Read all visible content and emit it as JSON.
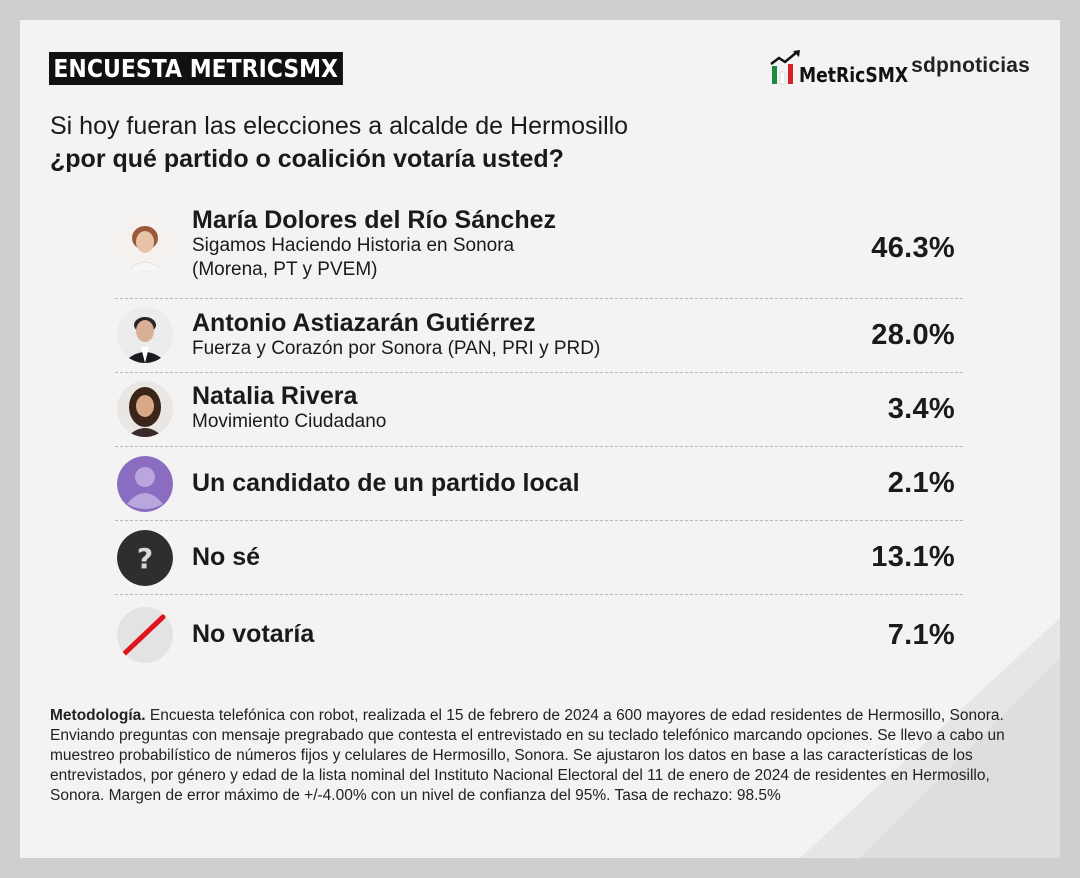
{
  "header": {
    "banner": "ENCUESTA METRICSMX",
    "metrics_logo": "MetRicSMX",
    "sdp_logo": "sdpnoticias"
  },
  "question": {
    "line1": "Si hoy fueran las elecciones a alcalde de Hermosillo",
    "line2": "¿por qué partido o coalición votaría usted?"
  },
  "chart_data": {
    "type": "table",
    "rows": [
      {
        "name": "María Dolores del Río Sánchez",
        "party": [
          "Sigamos Haciendo Historia en Sonora",
          "(Morena, PT y PVEM)"
        ],
        "value": 46.3,
        "label": "46.3%",
        "icon": "photo-woman-icon"
      },
      {
        "name": "Antonio Astiazarán Gutiérrez",
        "party": [
          "Fuerza y Corazón por Sonora (PAN, PRI y PRD)"
        ],
        "value": 28.0,
        "label": "28.0%",
        "icon": "photo-man-icon"
      },
      {
        "name": "Natalia Rivera",
        "party": [
          "Movimiento Ciudadano"
        ],
        "value": 3.4,
        "label": "3.4%",
        "icon": "photo-woman-icon"
      },
      {
        "name": "Un candidato de un partido local",
        "party": [],
        "value": 2.1,
        "label": "2.1%",
        "icon": "user-silhouette-icon"
      },
      {
        "name": "No sé",
        "party": [],
        "value": 13.1,
        "label": "13.1%",
        "icon": "question-mark-icon"
      },
      {
        "name": "No votaría",
        "party": [],
        "value": 7.1,
        "label": "7.1%",
        "icon": "no-vote-slash-icon"
      }
    ]
  },
  "methodology": {
    "label": "Metodología.",
    "text": " Encuesta telefónica con robot, realizada el 15 de febrero de 2024 a 600 mayores de edad residentes de Hermosillo, Sonora. Enviando preguntas con mensaje pregrabado que contesta el entrevistado en su teclado telefónico marcando opciones. Se llevo a cabo un muestreo probabilístico de números fijos y celulares de Hermosillo, Sonora. Se ajustaron los datos en base a las características de los entrevistados, por género y edad de la lista nominal del Instituto Nacional Electoral del 11 de enero de 2024 de residentes en Hermosillo, Sonora. Margen de error máximo de +/-4.00% con un nivel de confianza del 95%. Tasa de rechazo: 98.5%"
  },
  "colors": {
    "banner_bg": "#111111",
    "silhouette": "#8a6cc0",
    "question_bg": "#2e2e30",
    "slash": "#e0141c",
    "logo_green": "#1c8a3c",
    "logo_red": "#d8202a"
  }
}
